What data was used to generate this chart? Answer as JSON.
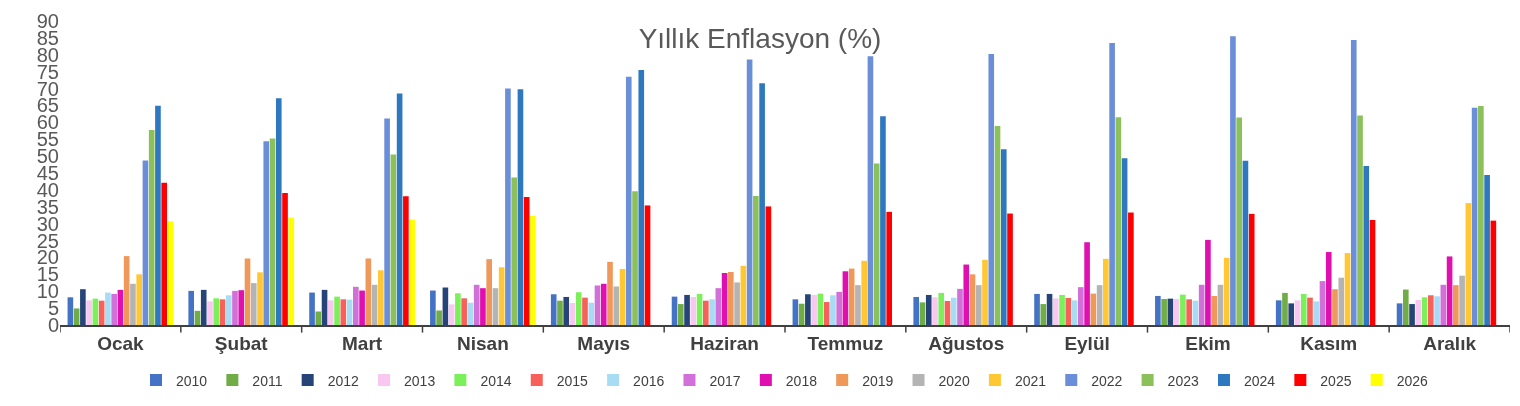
{
  "chart_data": {
    "type": "bar",
    "title": "Yıllık Enflasyon (%)",
    "categories": [
      "Ocak",
      "Şubat",
      "Mart",
      "Nisan",
      "Mayıs",
      "Haziran",
      "Temmuz",
      "Ağustos",
      "Eylül",
      "Ekim",
      "Kasım",
      "Aralık"
    ],
    "series": [
      {
        "name": "2010",
        "color": "#4472c4",
        "values": [
          8.2,
          10.1,
          9.6,
          10.2,
          9.1,
          8.4,
          7.6,
          8.3,
          9.2,
          8.6,
          7.3,
          6.4
        ]
      },
      {
        "name": "2011",
        "color": "#70ad47",
        "values": [
          4.9,
          4.2,
          4.0,
          4.3,
          7.2,
          6.2,
          6.3,
          6.7,
          6.2,
          7.7,
          9.5,
          10.5
        ]
      },
      {
        "name": "2012",
        "color": "#264478",
        "values": [
          10.6,
          10.4,
          10.4,
          11.1,
          8.3,
          8.9,
          9.1,
          8.9,
          9.2,
          7.8,
          6.4,
          6.2
        ]
      },
      {
        "name": "2013",
        "color": "#f8c8f0",
        "values": [
          7.3,
          7.0,
          7.3,
          6.1,
          6.5,
          8.3,
          8.9,
          8.2,
          7.9,
          7.7,
          7.3,
          7.4
        ]
      },
      {
        "name": "2014",
        "color": "#7cf05a",
        "values": [
          7.8,
          7.9,
          8.4,
          9.4,
          9.7,
          9.2,
          9.3,
          9.5,
          8.9,
          9.0,
          9.2,
          8.2
        ]
      },
      {
        "name": "2015",
        "color": "#f8605a",
        "values": [
          7.2,
          7.6,
          7.6,
          7.9,
          8.1,
          7.2,
          6.8,
          7.1,
          8.0,
          7.6,
          8.1,
          8.8
        ]
      },
      {
        "name": "2016",
        "color": "#a8dcf4",
        "values": [
          9.6,
          8.8,
          7.5,
          6.6,
          6.6,
          7.6,
          8.8,
          8.1,
          7.3,
          7.2,
          7.0,
          8.5
        ]
      },
      {
        "name": "2017",
        "color": "#d070d8",
        "values": [
          9.2,
          10.1,
          11.3,
          11.9,
          11.7,
          10.9,
          9.8,
          10.7,
          11.2,
          11.9,
          13.0,
          11.9
        ]
      },
      {
        "name": "2018",
        "color": "#e010b0",
        "values": [
          10.4,
          10.3,
          10.2,
          10.9,
          12.2,
          15.4,
          15.9,
          17.9,
          24.5,
          25.2,
          21.6,
          20.3
        ]
      },
      {
        "name": "2019",
        "color": "#f0985a",
        "values": [
          20.4,
          19.7,
          19.7,
          19.5,
          18.7,
          15.7,
          16.7,
          15.0,
          9.3,
          8.6,
          10.6,
          11.8
        ]
      },
      {
        "name": "2020",
        "color": "#b4b4b4",
        "values": [
          12.2,
          12.4,
          11.9,
          10.9,
          11.4,
          12.6,
          11.8,
          11.8,
          11.8,
          11.9,
          14.0,
          14.6
        ]
      },
      {
        "name": "2021",
        "color": "#ffc832",
        "values": [
          15.0,
          15.6,
          16.2,
          17.1,
          16.6,
          17.5,
          19.0,
          19.3,
          19.6,
          19.9,
          21.3,
          36.1
        ]
      },
      {
        "name": "2022",
        "color": "#6a8ed8",
        "values": [
          48.7,
          54.4,
          61.1,
          70.0,
          73.5,
          78.6,
          79.6,
          80.2,
          83.5,
          85.5,
          84.4,
          64.3
        ]
      },
      {
        "name": "2023",
        "color": "#8cc05a",
        "values": [
          57.7,
          55.2,
          50.5,
          43.7,
          39.6,
          38.2,
          47.8,
          58.9,
          61.5,
          61.4,
          62.0,
          64.8
        ]
      },
      {
        "name": "2024",
        "color": "#2e78c0",
        "values": [
          64.9,
          67.1,
          68.5,
          69.8,
          75.5,
          71.6,
          61.8,
          52.0,
          49.4,
          48.6,
          47.1,
          44.4
        ]
      },
      {
        "name": "2025",
        "color": "#ff0000",
        "values": [
          42.1,
          39.1,
          38.1,
          37.9,
          35.4,
          35.1,
          33.5,
          33.0,
          33.3,
          32.9,
          31.1,
          30.9
        ]
      },
      {
        "name": "2026",
        "color": "#ffff00",
        "values": [
          30.7,
          31.8,
          31.2,
          32.3,
          null,
          null,
          null,
          null,
          null,
          null,
          null,
          null
        ]
      }
    ],
    "ylim": [
      0,
      90
    ],
    "yticks": [
      0,
      5,
      10,
      15,
      20,
      25,
      30,
      35,
      40,
      45,
      50,
      55,
      60,
      65,
      70,
      75,
      80,
      85,
      90
    ],
    "legend": "bottom"
  }
}
